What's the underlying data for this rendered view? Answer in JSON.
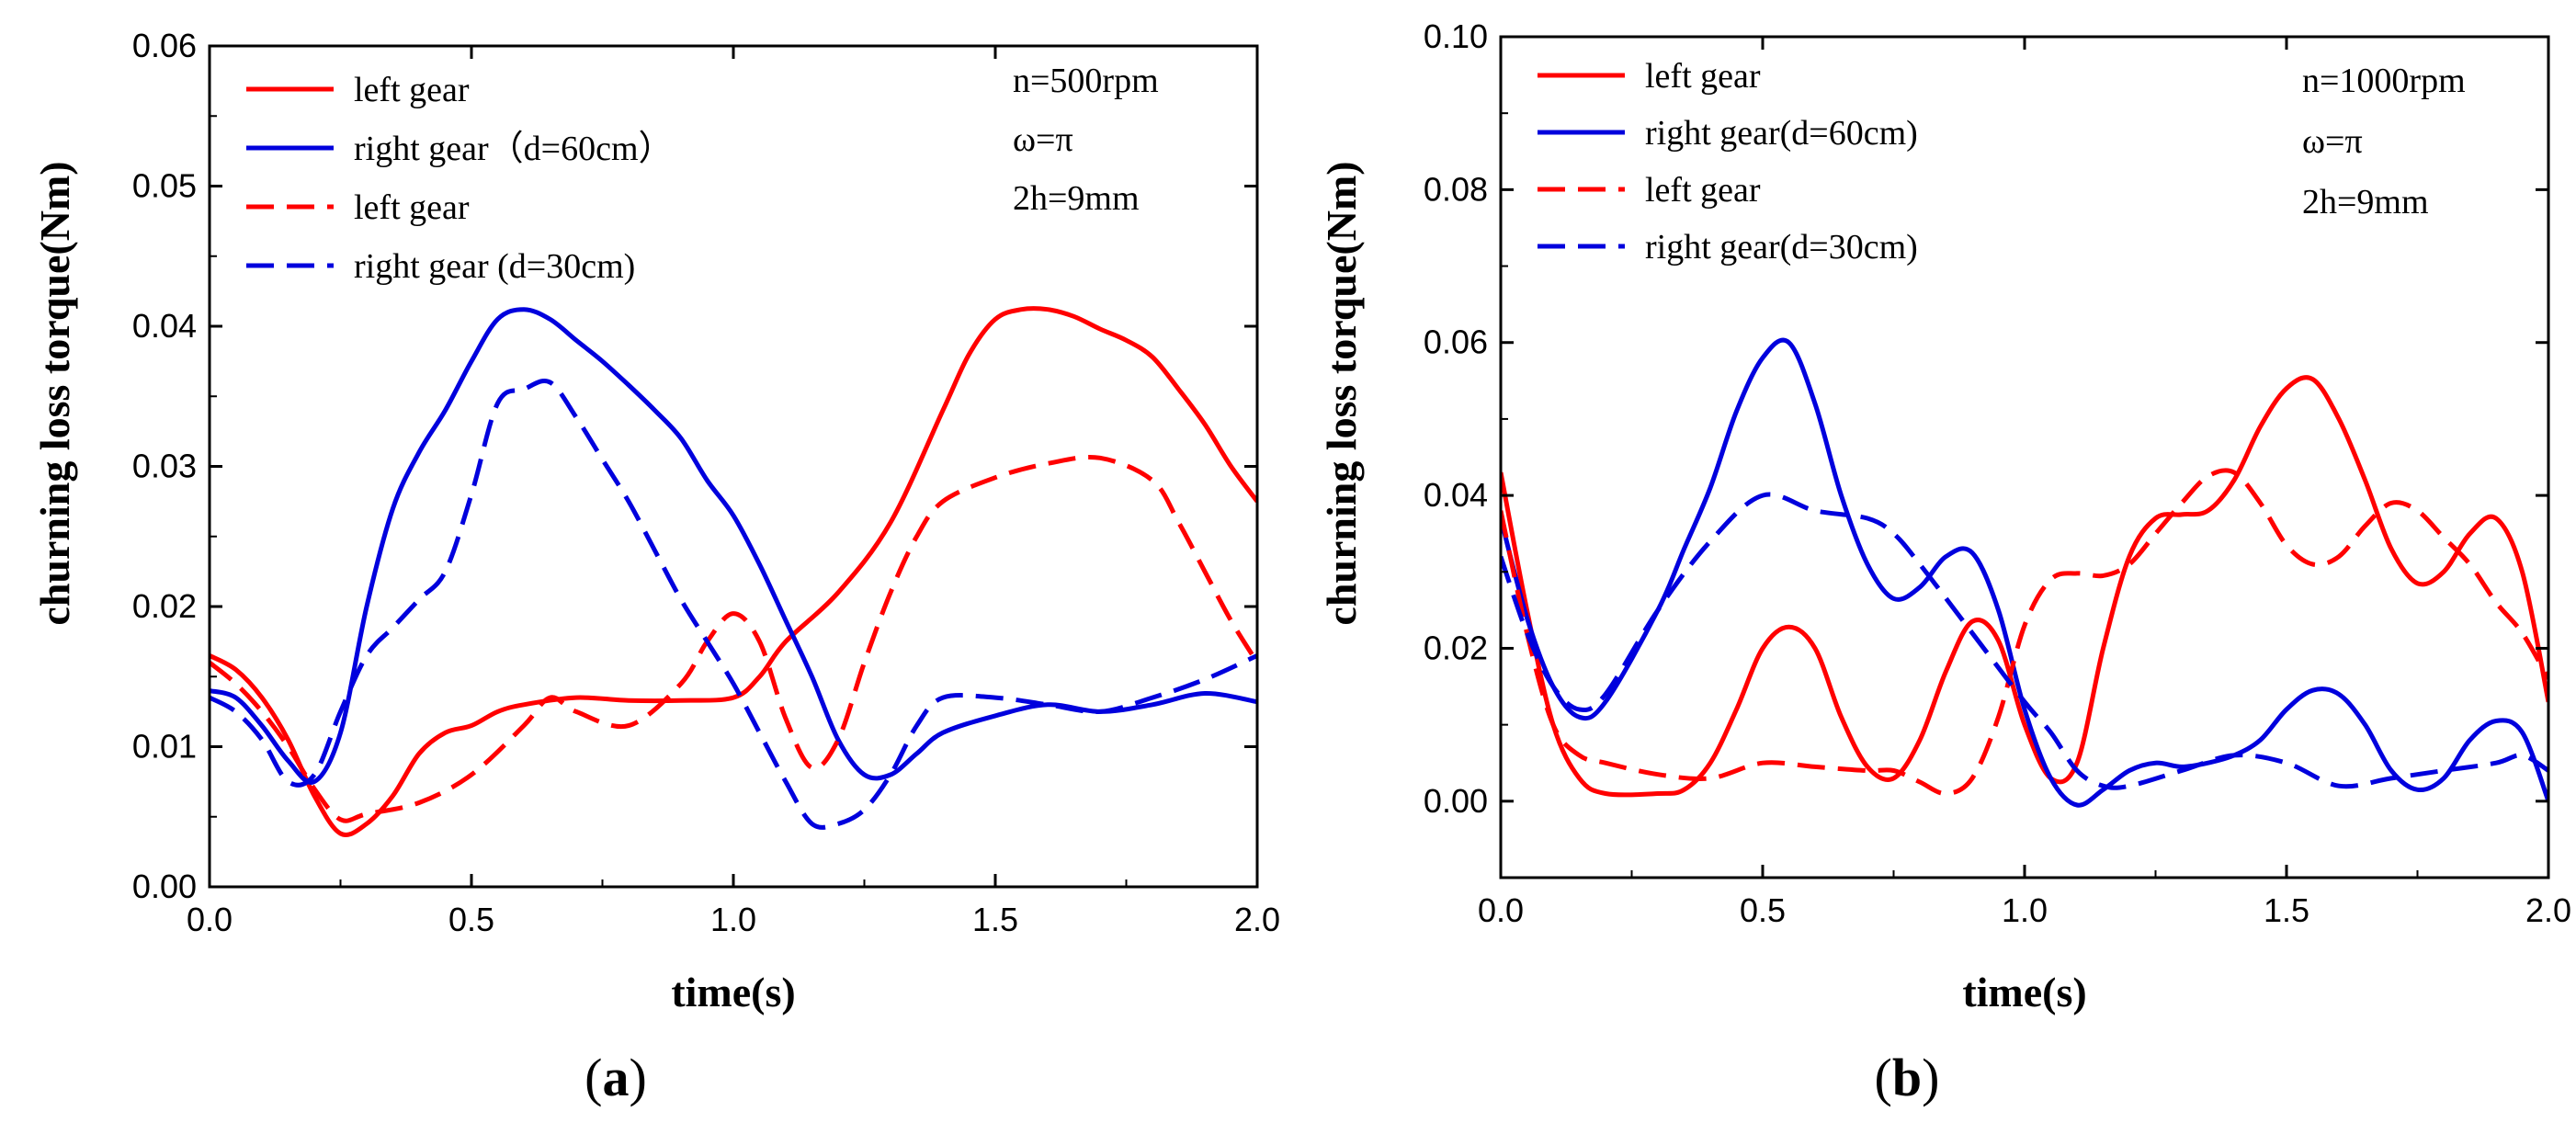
{
  "chart_data": [
    {
      "type": "line",
      "panel_label": "(a)",
      "panel_letter": "a",
      "xlabel": "time(s)",
      "ylabel": "churning loss torque(Nm)",
      "xlim": [
        0.0,
        2.0
      ],
      "ylim": [
        0.0,
        0.06
      ],
      "xticks": [
        0.0,
        0.5,
        1.0,
        1.5,
        2.0
      ],
      "xtick_labels": [
        "0.0",
        "0.5",
        "1.0",
        "1.5",
        "2.0"
      ],
      "yticks": [
        0.0,
        0.01,
        0.02,
        0.03,
        0.04,
        0.05,
        0.06
      ],
      "ytick_labels": [
        "0.00",
        "0.01",
        "0.02",
        "0.03",
        "0.04",
        "0.05",
        "0.06"
      ],
      "annotations": [
        "n=500rpm",
        "ω=π",
        "2h=9mm"
      ],
      "legend_position": "top-left",
      "series": [
        {
          "name": "left gear",
          "legend_label": "left gear",
          "color": "#ff0000",
          "style": "solid",
          "x": [
            0.0,
            0.05,
            0.1,
            0.15,
            0.2,
            0.25,
            0.3,
            0.35,
            0.4,
            0.45,
            0.5,
            0.55,
            0.6,
            0.7,
            0.8,
            0.9,
            1.0,
            1.05,
            1.1,
            1.2,
            1.3,
            1.4,
            1.45,
            1.5,
            1.55,
            1.6,
            1.65,
            1.7,
            1.75,
            1.8,
            1.85,
            1.9,
            1.95,
            2.0
          ],
          "y": [
            0.0165,
            0.0155,
            0.0135,
            0.0105,
            0.0065,
            0.0038,
            0.0045,
            0.0065,
            0.0095,
            0.011,
            0.0115,
            0.0125,
            0.013,
            0.0135,
            0.0133,
            0.0133,
            0.0135,
            0.015,
            0.0175,
            0.021,
            0.026,
            0.034,
            0.038,
            0.0405,
            0.0412,
            0.0412,
            0.0407,
            0.0398,
            0.039,
            0.0378,
            0.0355,
            0.033,
            0.03,
            0.0275
          ]
        },
        {
          "name": "right gear (d=60cm)",
          "legend_label": "right gear（d=60cm）",
          "color": "#0000dd",
          "style": "solid",
          "x": [
            0.0,
            0.05,
            0.1,
            0.15,
            0.2,
            0.25,
            0.3,
            0.35,
            0.4,
            0.45,
            0.5,
            0.55,
            0.6,
            0.65,
            0.7,
            0.75,
            0.8,
            0.85,
            0.9,
            0.95,
            1.0,
            1.05,
            1.1,
            1.15,
            1.2,
            1.25,
            1.3,
            1.35,
            1.4,
            1.5,
            1.6,
            1.7,
            1.8,
            1.9,
            2.0
          ],
          "y": [
            0.014,
            0.0135,
            0.0115,
            0.009,
            0.0075,
            0.011,
            0.02,
            0.027,
            0.031,
            0.034,
            0.0375,
            0.0405,
            0.0412,
            0.0405,
            0.039,
            0.0375,
            0.0358,
            0.034,
            0.032,
            0.029,
            0.0265,
            0.023,
            0.019,
            0.015,
            0.0105,
            0.008,
            0.008,
            0.0095,
            0.011,
            0.0122,
            0.013,
            0.0125,
            0.013,
            0.0138,
            0.0132
          ]
        },
        {
          "name": "left gear",
          "legend_label": "left gear",
          "color": "#ff0000",
          "style": "dashed",
          "x": [
            0.0,
            0.05,
            0.1,
            0.15,
            0.2,
            0.25,
            0.3,
            0.4,
            0.5,
            0.6,
            0.65,
            0.7,
            0.8,
            0.9,
            0.95,
            1.0,
            1.05,
            1.1,
            1.15,
            1.2,
            1.25,
            1.3,
            1.35,
            1.4,
            1.5,
            1.6,
            1.7,
            1.8,
            1.85,
            1.9,
            1.95,
            2.0
          ],
          "y": [
            0.016,
            0.0145,
            0.0125,
            0.01,
            0.007,
            0.0048,
            0.0052,
            0.006,
            0.008,
            0.0115,
            0.0135,
            0.0125,
            0.0115,
            0.0145,
            0.0175,
            0.0195,
            0.0175,
            0.012,
            0.0085,
            0.0105,
            0.016,
            0.021,
            0.025,
            0.0275,
            0.0292,
            0.0302,
            0.0306,
            0.029,
            0.026,
            0.0225,
            0.019,
            0.016
          ]
        },
        {
          "name": "right gear (d=30cm)",
          "legend_label": "right gear (d=30cm)",
          "color": "#0000dd",
          "style": "dashed",
          "x": [
            0.0,
            0.05,
            0.1,
            0.15,
            0.2,
            0.25,
            0.3,
            0.35,
            0.4,
            0.45,
            0.5,
            0.55,
            0.6,
            0.65,
            0.7,
            0.75,
            0.8,
            0.85,
            0.9,
            0.95,
            1.0,
            1.05,
            1.1,
            1.15,
            1.2,
            1.25,
            1.3,
            1.35,
            1.4,
            1.5,
            1.6,
            1.7,
            1.8,
            1.9,
            2.0
          ],
          "y": [
            0.0135,
            0.0125,
            0.0105,
            0.0075,
            0.008,
            0.0125,
            0.0165,
            0.0185,
            0.0205,
            0.0225,
            0.028,
            0.0345,
            0.0355,
            0.036,
            0.0335,
            0.0305,
            0.0275,
            0.024,
            0.0205,
            0.0175,
            0.0145,
            0.011,
            0.0075,
            0.0045,
            0.0045,
            0.0055,
            0.008,
            0.0115,
            0.0135,
            0.0135,
            0.013,
            0.0125,
            0.0135,
            0.0148,
            0.0165
          ]
        }
      ]
    },
    {
      "type": "line",
      "panel_label": "(b)",
      "panel_letter": "b",
      "xlabel": "time(s)",
      "ylabel": "churning loss torque(Nm)",
      "xlim": [
        0.0,
        2.0
      ],
      "ylim": [
        -0.01,
        0.1
      ],
      "xticks": [
        0.0,
        0.5,
        1.0,
        1.5,
        2.0
      ],
      "xtick_labels": [
        "0.0",
        "0.5",
        "1.0",
        "1.5",
        "2.0"
      ],
      "yticks": [
        0.0,
        0.02,
        0.04,
        0.06,
        0.08,
        0.1
      ],
      "ytick_labels": [
        "0.00",
        "0.02",
        "0.04",
        "0.06",
        "0.08",
        "0.10"
      ],
      "annotations": [
        "n=1000rpm",
        "ω=π",
        "2h=9mm"
      ],
      "legend_position": "top-left",
      "series": [
        {
          "name": "left gear",
          "legend_label": "left gear",
          "color": "#ff0000",
          "style": "solid",
          "x": [
            0.0,
            0.05,
            0.1,
            0.15,
            0.2,
            0.3,
            0.35,
            0.4,
            0.45,
            0.5,
            0.55,
            0.6,
            0.65,
            0.7,
            0.75,
            0.8,
            0.85,
            0.9,
            0.95,
            1.0,
            1.05,
            1.1,
            1.15,
            1.2,
            1.25,
            1.3,
            1.35,
            1.4,
            1.45,
            1.5,
            1.55,
            1.6,
            1.65,
            1.7,
            1.75,
            1.8,
            1.85,
            1.9,
            1.95,
            2.0
          ],
          "y": [
            0.043,
            0.025,
            0.01,
            0.003,
            0.001,
            0.001,
            0.0015,
            0.005,
            0.012,
            0.02,
            0.0228,
            0.02,
            0.011,
            0.0045,
            0.003,
            0.008,
            0.017,
            0.0235,
            0.021,
            0.01,
            0.003,
            0.005,
            0.02,
            0.032,
            0.037,
            0.0375,
            0.038,
            0.042,
            0.049,
            0.054,
            0.0552,
            0.05,
            0.042,
            0.033,
            0.0285,
            0.03,
            0.035,
            0.037,
            0.03,
            0.013
          ]
        },
        {
          "name": "right gear (d=60cm)",
          "legend_label": "right gear(d=60cm)",
          "color": "#0000dd",
          "style": "solid",
          "x": [
            0.0,
            0.05,
            0.1,
            0.15,
            0.2,
            0.3,
            0.35,
            0.4,
            0.45,
            0.5,
            0.55,
            0.6,
            0.65,
            0.7,
            0.75,
            0.8,
            0.85,
            0.9,
            0.95,
            1.0,
            1.05,
            1.1,
            1.15,
            1.2,
            1.25,
            1.3,
            1.35,
            1.4,
            1.45,
            1.5,
            1.55,
            1.6,
            1.65,
            1.7,
            1.75,
            1.8,
            1.85,
            1.9,
            1.95,
            2.0
          ],
          "y": [
            0.037,
            0.024,
            0.015,
            0.011,
            0.013,
            0.025,
            0.033,
            0.041,
            0.051,
            0.058,
            0.06,
            0.052,
            0.04,
            0.031,
            0.0265,
            0.028,
            0.032,
            0.0325,
            0.025,
            0.012,
            0.003,
            -0.0005,
            0.0015,
            0.004,
            0.005,
            0.0045,
            0.005,
            0.006,
            0.008,
            0.012,
            0.0145,
            0.014,
            0.01,
            0.004,
            0.0015,
            0.003,
            0.008,
            0.0105,
            0.009,
            0.0
          ]
        },
        {
          "name": "left gear",
          "legend_label": "left gear",
          "color": "#ff0000",
          "style": "dashed",
          "x": [
            0.0,
            0.05,
            0.1,
            0.15,
            0.2,
            0.3,
            0.4,
            0.5,
            0.6,
            0.7,
            0.75,
            0.8,
            0.85,
            0.9,
            0.95,
            1.0,
            1.05,
            1.1,
            1.15,
            1.2,
            1.25,
            1.3,
            1.35,
            1.4,
            1.45,
            1.5,
            1.55,
            1.6,
            1.65,
            1.7,
            1.75,
            1.8,
            1.85,
            1.9,
            1.95,
            2.0
          ],
          "y": [
            0.038,
            0.022,
            0.01,
            0.006,
            0.005,
            0.0035,
            0.003,
            0.005,
            0.0045,
            0.004,
            0.004,
            0.0025,
            0.001,
            0.003,
            0.011,
            0.023,
            0.029,
            0.0298,
            0.0295,
            0.031,
            0.035,
            0.039,
            0.0425,
            0.043,
            0.039,
            0.0335,
            0.031,
            0.032,
            0.036,
            0.039,
            0.038,
            0.0345,
            0.031,
            0.026,
            0.022,
            0.016
          ]
        },
        {
          "name": "right gear (d=30cm)",
          "legend_label": "right gear(d=30cm)",
          "color": "#0000dd",
          "style": "dashed",
          "x": [
            0.0,
            0.05,
            0.1,
            0.15,
            0.2,
            0.3,
            0.4,
            0.5,
            0.6,
            0.7,
            0.75,
            0.8,
            0.9,
            1.0,
            1.05,
            1.1,
            1.15,
            1.2,
            1.3,
            1.4,
            1.5,
            1.6,
            1.7,
            1.8,
            1.9,
            1.95,
            2.0
          ],
          "y": [
            0.032,
            0.022,
            0.015,
            0.012,
            0.014,
            0.025,
            0.034,
            0.04,
            0.038,
            0.037,
            0.035,
            0.031,
            0.022,
            0.013,
            0.009,
            0.004,
            0.002,
            0.002,
            0.004,
            0.006,
            0.005,
            0.002,
            0.003,
            0.004,
            0.005,
            0.006,
            0.004
          ]
        }
      ]
    }
  ]
}
